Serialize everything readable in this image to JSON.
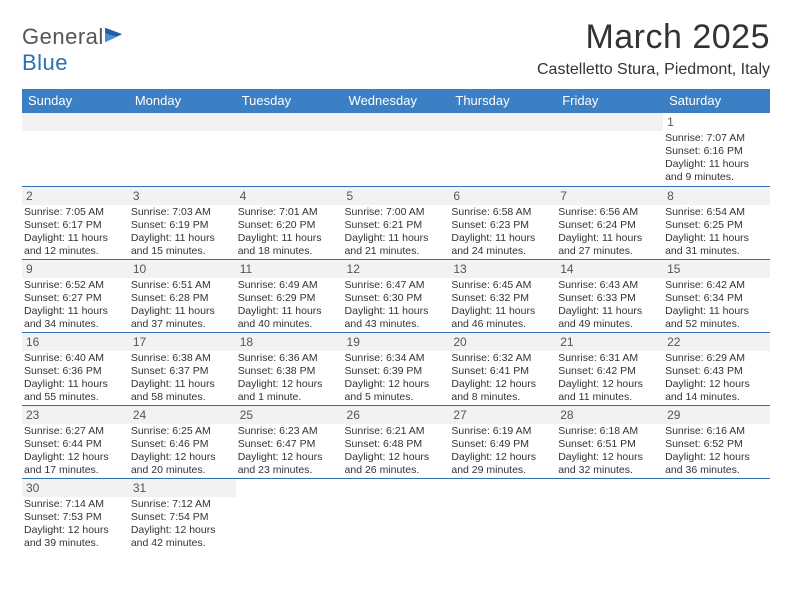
{
  "brand": {
    "name_part1": "General",
    "name_part2": "Blue"
  },
  "title": "March 2025",
  "subtitle": "Castelletto Stura, Piedmont, Italy",
  "colors": {
    "header_bg": "#3b7fc4",
    "header_text": "#ffffff",
    "rule": "#2f6fb2",
    "daynum_bg": "#f2f2f2",
    "text": "#333333",
    "brand_gray": "#555555",
    "brand_blue": "#2f6fb2"
  },
  "typography": {
    "title_fontsize": 34,
    "subtitle_fontsize": 16,
    "dayheader_fontsize": 13,
    "daynum_fontsize": 12,
    "info_fontsize": 10.5
  },
  "day_headers": [
    "Sunday",
    "Monday",
    "Tuesday",
    "Wednesday",
    "Thursday",
    "Friday",
    "Saturday"
  ],
  "days": {
    "1": {
      "sunrise": "7:07 AM",
      "sunset": "6:16 PM",
      "daylight": "11 hours and 9 minutes."
    },
    "2": {
      "sunrise": "7:05 AM",
      "sunset": "6:17 PM",
      "daylight": "11 hours and 12 minutes."
    },
    "3": {
      "sunrise": "7:03 AM",
      "sunset": "6:19 PM",
      "daylight": "11 hours and 15 minutes."
    },
    "4": {
      "sunrise": "7:01 AM",
      "sunset": "6:20 PM",
      "daylight": "11 hours and 18 minutes."
    },
    "5": {
      "sunrise": "7:00 AM",
      "sunset": "6:21 PM",
      "daylight": "11 hours and 21 minutes."
    },
    "6": {
      "sunrise": "6:58 AM",
      "sunset": "6:23 PM",
      "daylight": "11 hours and 24 minutes."
    },
    "7": {
      "sunrise": "6:56 AM",
      "sunset": "6:24 PM",
      "daylight": "11 hours and 27 minutes."
    },
    "8": {
      "sunrise": "6:54 AM",
      "sunset": "6:25 PM",
      "daylight": "11 hours and 31 minutes."
    },
    "9": {
      "sunrise": "6:52 AM",
      "sunset": "6:27 PM",
      "daylight": "11 hours and 34 minutes."
    },
    "10": {
      "sunrise": "6:51 AM",
      "sunset": "6:28 PM",
      "daylight": "11 hours and 37 minutes."
    },
    "11": {
      "sunrise": "6:49 AM",
      "sunset": "6:29 PM",
      "daylight": "11 hours and 40 minutes."
    },
    "12": {
      "sunrise": "6:47 AM",
      "sunset": "6:30 PM",
      "daylight": "11 hours and 43 minutes."
    },
    "13": {
      "sunrise": "6:45 AM",
      "sunset": "6:32 PM",
      "daylight": "11 hours and 46 minutes."
    },
    "14": {
      "sunrise": "6:43 AM",
      "sunset": "6:33 PM",
      "daylight": "11 hours and 49 minutes."
    },
    "15": {
      "sunrise": "6:42 AM",
      "sunset": "6:34 PM",
      "daylight": "11 hours and 52 minutes."
    },
    "16": {
      "sunrise": "6:40 AM",
      "sunset": "6:36 PM",
      "daylight": "11 hours and 55 minutes."
    },
    "17": {
      "sunrise": "6:38 AM",
      "sunset": "6:37 PM",
      "daylight": "11 hours and 58 minutes."
    },
    "18": {
      "sunrise": "6:36 AM",
      "sunset": "6:38 PM",
      "daylight": "12 hours and 1 minute."
    },
    "19": {
      "sunrise": "6:34 AM",
      "sunset": "6:39 PM",
      "daylight": "12 hours and 5 minutes."
    },
    "20": {
      "sunrise": "6:32 AM",
      "sunset": "6:41 PM",
      "daylight": "12 hours and 8 minutes."
    },
    "21": {
      "sunrise": "6:31 AM",
      "sunset": "6:42 PM",
      "daylight": "12 hours and 11 minutes."
    },
    "22": {
      "sunrise": "6:29 AM",
      "sunset": "6:43 PM",
      "daylight": "12 hours and 14 minutes."
    },
    "23": {
      "sunrise": "6:27 AM",
      "sunset": "6:44 PM",
      "daylight": "12 hours and 17 minutes."
    },
    "24": {
      "sunrise": "6:25 AM",
      "sunset": "6:46 PM",
      "daylight": "12 hours and 20 minutes."
    },
    "25": {
      "sunrise": "6:23 AM",
      "sunset": "6:47 PM",
      "daylight": "12 hours and 23 minutes."
    },
    "26": {
      "sunrise": "6:21 AM",
      "sunset": "6:48 PM",
      "daylight": "12 hours and 26 minutes."
    },
    "27": {
      "sunrise": "6:19 AM",
      "sunset": "6:49 PM",
      "daylight": "12 hours and 29 minutes."
    },
    "28": {
      "sunrise": "6:18 AM",
      "sunset": "6:51 PM",
      "daylight": "12 hours and 32 minutes."
    },
    "29": {
      "sunrise": "6:16 AM",
      "sunset": "6:52 PM",
      "daylight": "12 hours and 36 minutes."
    },
    "30": {
      "sunrise": "7:14 AM",
      "sunset": "7:53 PM",
      "daylight": "12 hours and 39 minutes."
    },
    "31": {
      "sunrise": "7:12 AM",
      "sunset": "7:54 PM",
      "daylight": "12 hours and 42 minutes."
    }
  },
  "labels": {
    "sunrise": "Sunrise:",
    "sunset": "Sunset:",
    "daylight": "Daylight:"
  },
  "grid": {
    "first_weekday_index": 6,
    "num_days": 31,
    "weeks": [
      [
        null,
        null,
        null,
        null,
        null,
        null,
        "1"
      ],
      [
        "2",
        "3",
        "4",
        "5",
        "6",
        "7",
        "8"
      ],
      [
        "9",
        "10",
        "11",
        "12",
        "13",
        "14",
        "15"
      ],
      [
        "16",
        "17",
        "18",
        "19",
        "20",
        "21",
        "22"
      ],
      [
        "23",
        "24",
        "25",
        "26",
        "27",
        "28",
        "29"
      ],
      [
        "30",
        "31",
        null,
        null,
        null,
        null,
        null
      ]
    ]
  }
}
